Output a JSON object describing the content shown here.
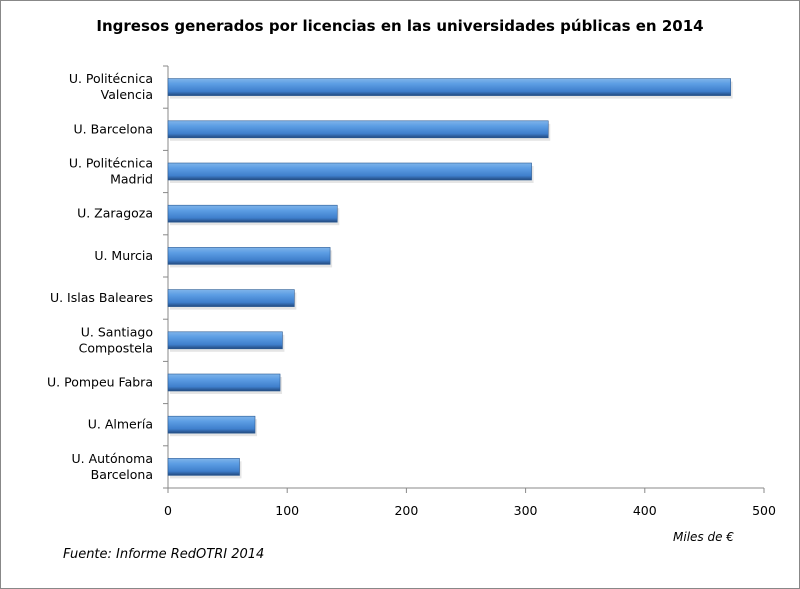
{
  "chart_data": {
    "type": "bar",
    "orientation": "horizontal",
    "title": "Ingresos generados por licencias en las universidades públicas en 2014",
    "categories": [
      [
        "U. Politécnica",
        "Valencia"
      ],
      [
        "U. Barcelona"
      ],
      [
        "U. Politécnica",
        "Madrid"
      ],
      [
        "U. Zaragoza"
      ],
      [
        "U. Murcia"
      ],
      [
        "U. Islas Baleares"
      ],
      [
        "U. Santiago",
        "Compostela"
      ],
      [
        "U. Pompeu Fabra"
      ],
      [
        "U. Almería"
      ],
      [
        "U. Autónoma",
        "Barcelona"
      ]
    ],
    "values": [
      472,
      319,
      305,
      142,
      136,
      106,
      96,
      94,
      73,
      60
    ],
    "xlabel": "Miles de €",
    "xlim": [
      0,
      500
    ],
    "xticks": [
      "0",
      "100",
      "200",
      "300",
      "400",
      "500"
    ],
    "grid": false,
    "bar_color": "#4a8fd8",
    "source": "Fuente: Informe RedOTRI 2014"
  }
}
